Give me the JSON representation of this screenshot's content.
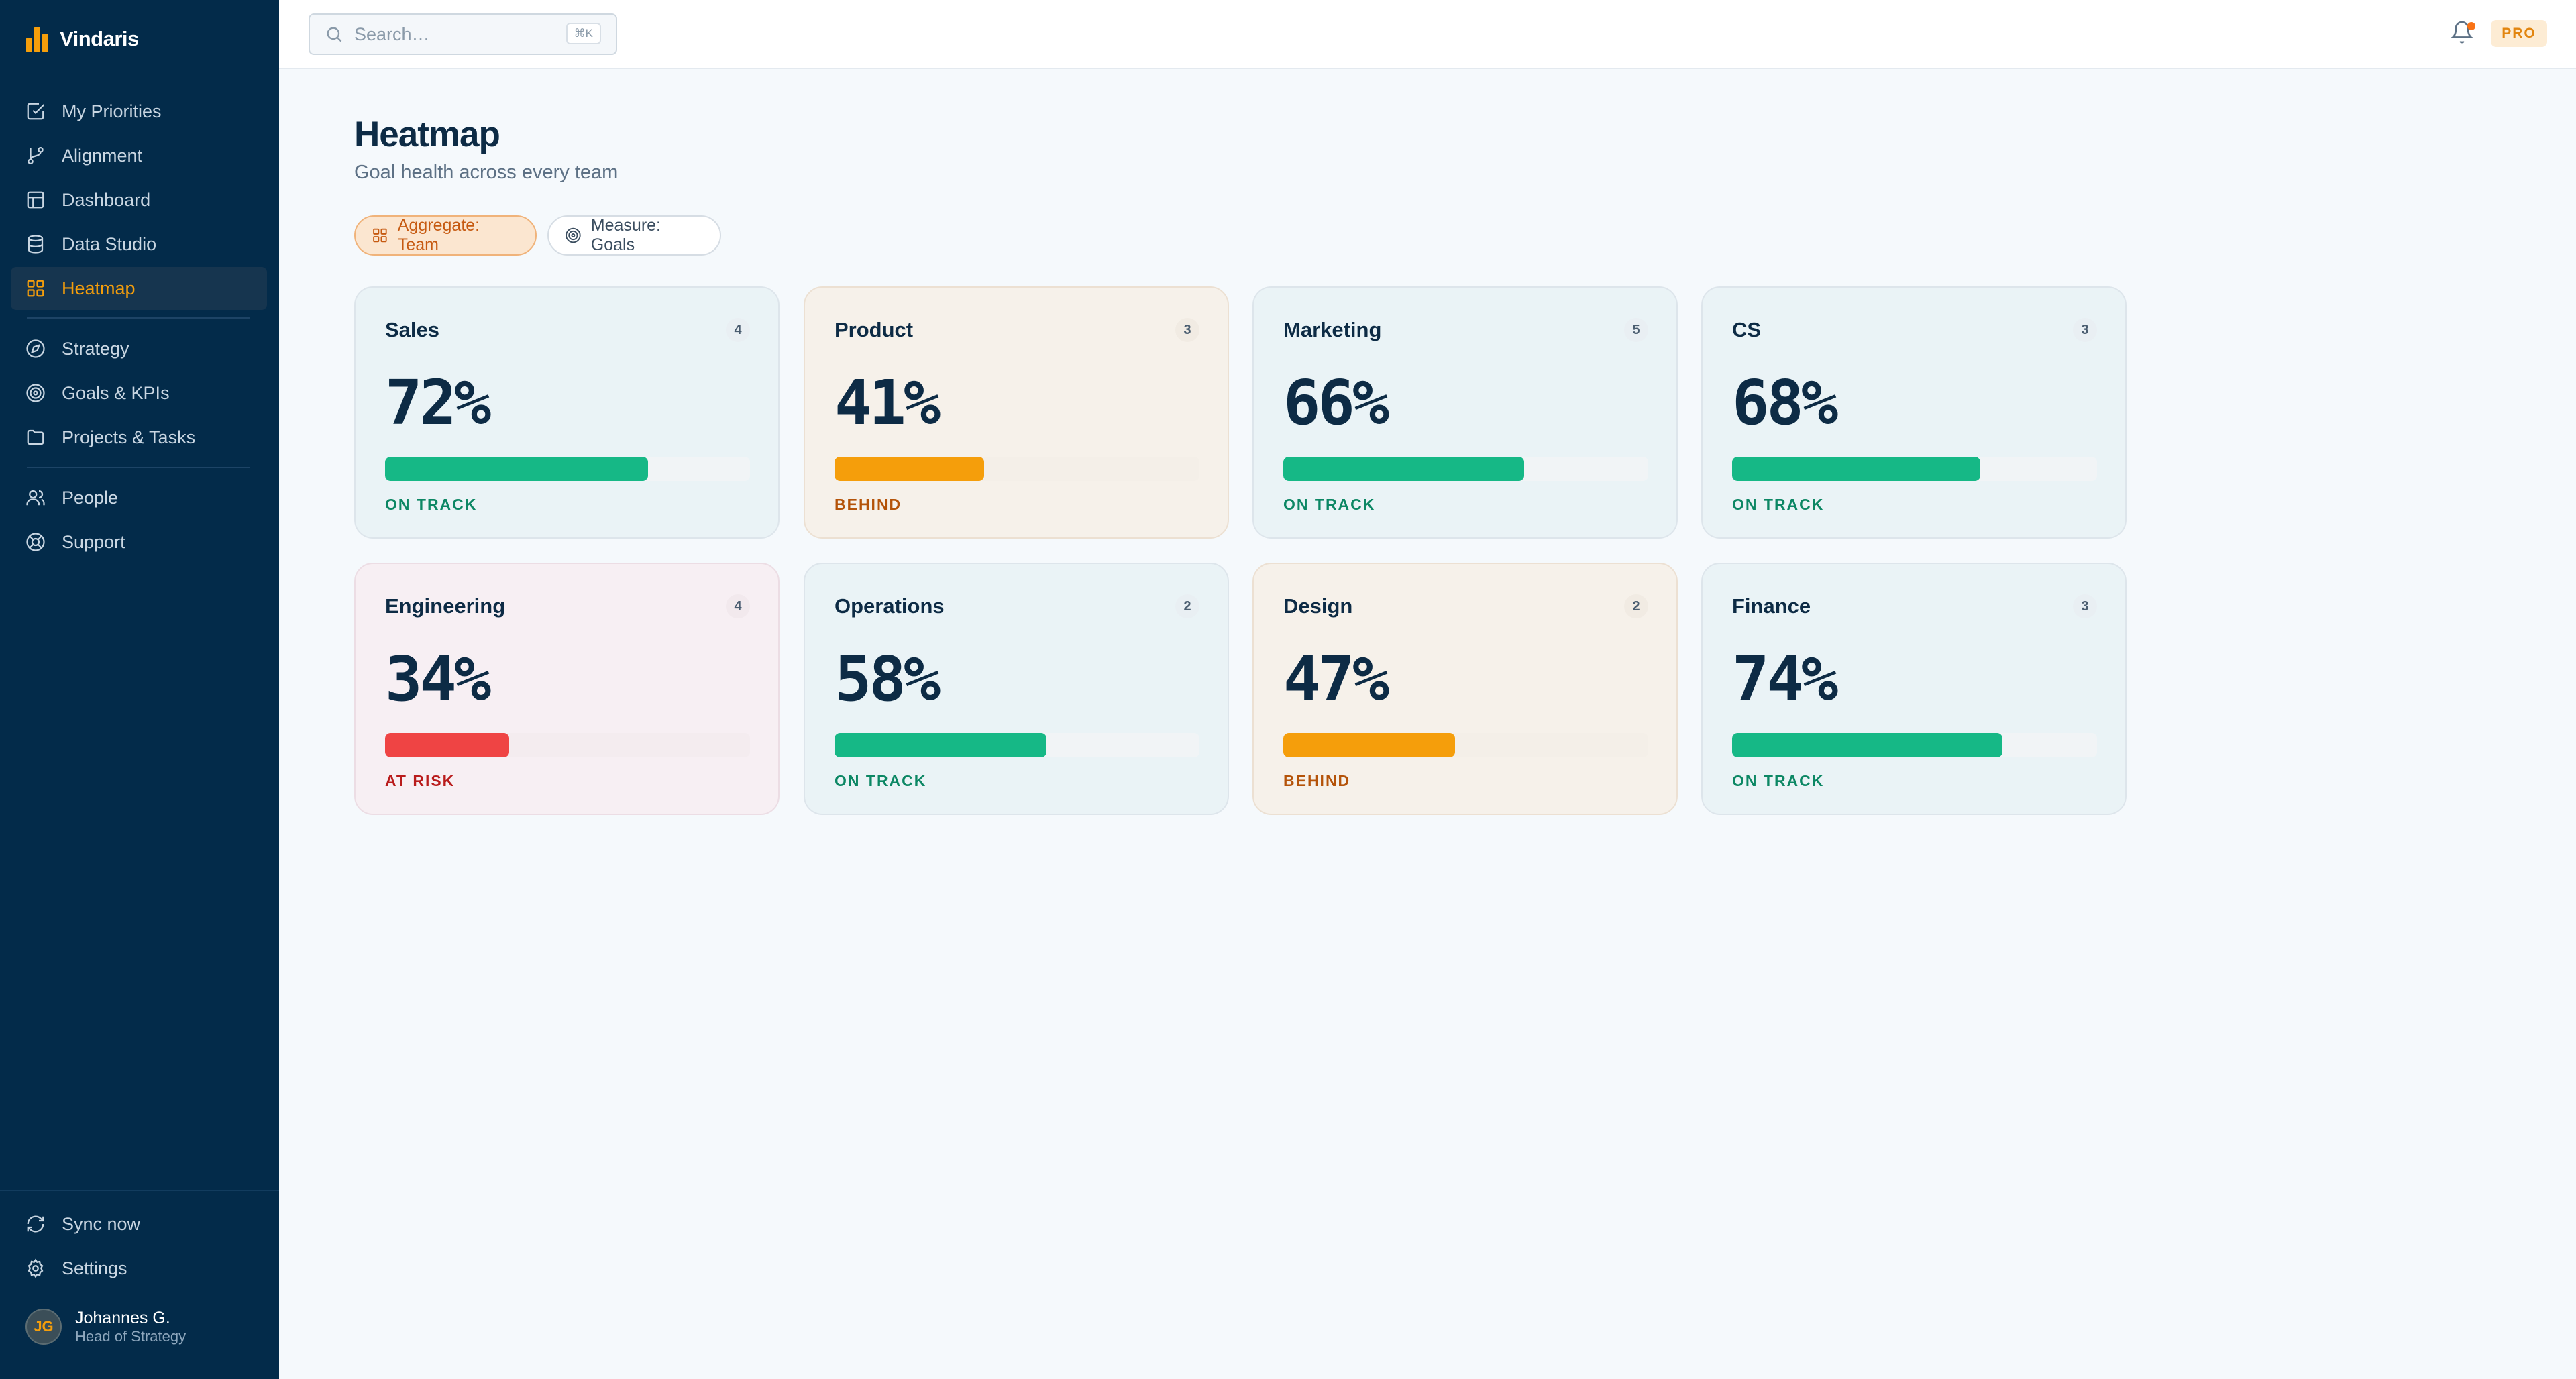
{
  "app": {
    "brand": "Vindaris"
  },
  "sidebar": {
    "items": [
      {
        "label": "My Priorities",
        "icon": "checkbox-icon"
      },
      {
        "label": "Alignment",
        "icon": "git-branch-icon"
      },
      {
        "label": "Dashboard",
        "icon": "layout-icon"
      },
      {
        "label": "Data Studio",
        "icon": "database-icon"
      },
      {
        "label": "Heatmap",
        "icon": "grid-icon",
        "active": true
      },
      {
        "label": "Strategy",
        "icon": "compass-icon"
      },
      {
        "label": "Goals & KPIs",
        "icon": "target-icon"
      },
      {
        "label": "Projects & Tasks",
        "icon": "folder-icon"
      },
      {
        "label": "People",
        "icon": "users-icon"
      },
      {
        "label": "Support",
        "icon": "lifebuoy-icon"
      }
    ],
    "footer": {
      "sync_label": "Sync now",
      "settings_label": "Settings"
    },
    "user": {
      "initials": "JG",
      "name": "Johannes G.",
      "role": "Head of Strategy"
    }
  },
  "topbar": {
    "search_placeholder": "Search…",
    "search_shortcut": "⌘K",
    "plan_badge": "PRO"
  },
  "page": {
    "title": "Heatmap",
    "subtitle": "Goal health across every team",
    "filters": {
      "aggregate": "Aggregate: Team",
      "measure": "Measure: Goals"
    }
  },
  "teams": [
    {
      "name": "Sales",
      "count": "4",
      "percent": "72%",
      "progress": 0.72,
      "status": "ON TRACK",
      "level": "good"
    },
    {
      "name": "Product",
      "count": "3",
      "percent": "41%",
      "progress": 0.41,
      "status": "BEHIND",
      "level": "warn"
    },
    {
      "name": "Marketing",
      "count": "5",
      "percent": "66%",
      "progress": 0.66,
      "status": "ON TRACK",
      "level": "good"
    },
    {
      "name": "CS",
      "count": "3",
      "percent": "68%",
      "progress": 0.68,
      "status": "ON TRACK",
      "level": "good"
    },
    {
      "name": "Engineering",
      "count": "4",
      "percent": "34%",
      "progress": 0.34,
      "status": "AT RISK",
      "level": "bad"
    },
    {
      "name": "Operations",
      "count": "2",
      "percent": "58%",
      "progress": 0.58,
      "status": "ON TRACK",
      "level": "good"
    },
    {
      "name": "Design",
      "count": "2",
      "percent": "47%",
      "progress": 0.47,
      "status": "BEHIND",
      "level": "warn"
    },
    {
      "name": "Finance",
      "count": "3",
      "percent": "74%",
      "progress": 0.74,
      "status": "ON TRACK",
      "level": "good"
    }
  ],
  "colors": {
    "sidebar_bg": "#032b4a",
    "accent": "#f59e0b",
    "on_track": "#16b886",
    "behind": "#f59e0b",
    "at_risk": "#ef4444"
  }
}
